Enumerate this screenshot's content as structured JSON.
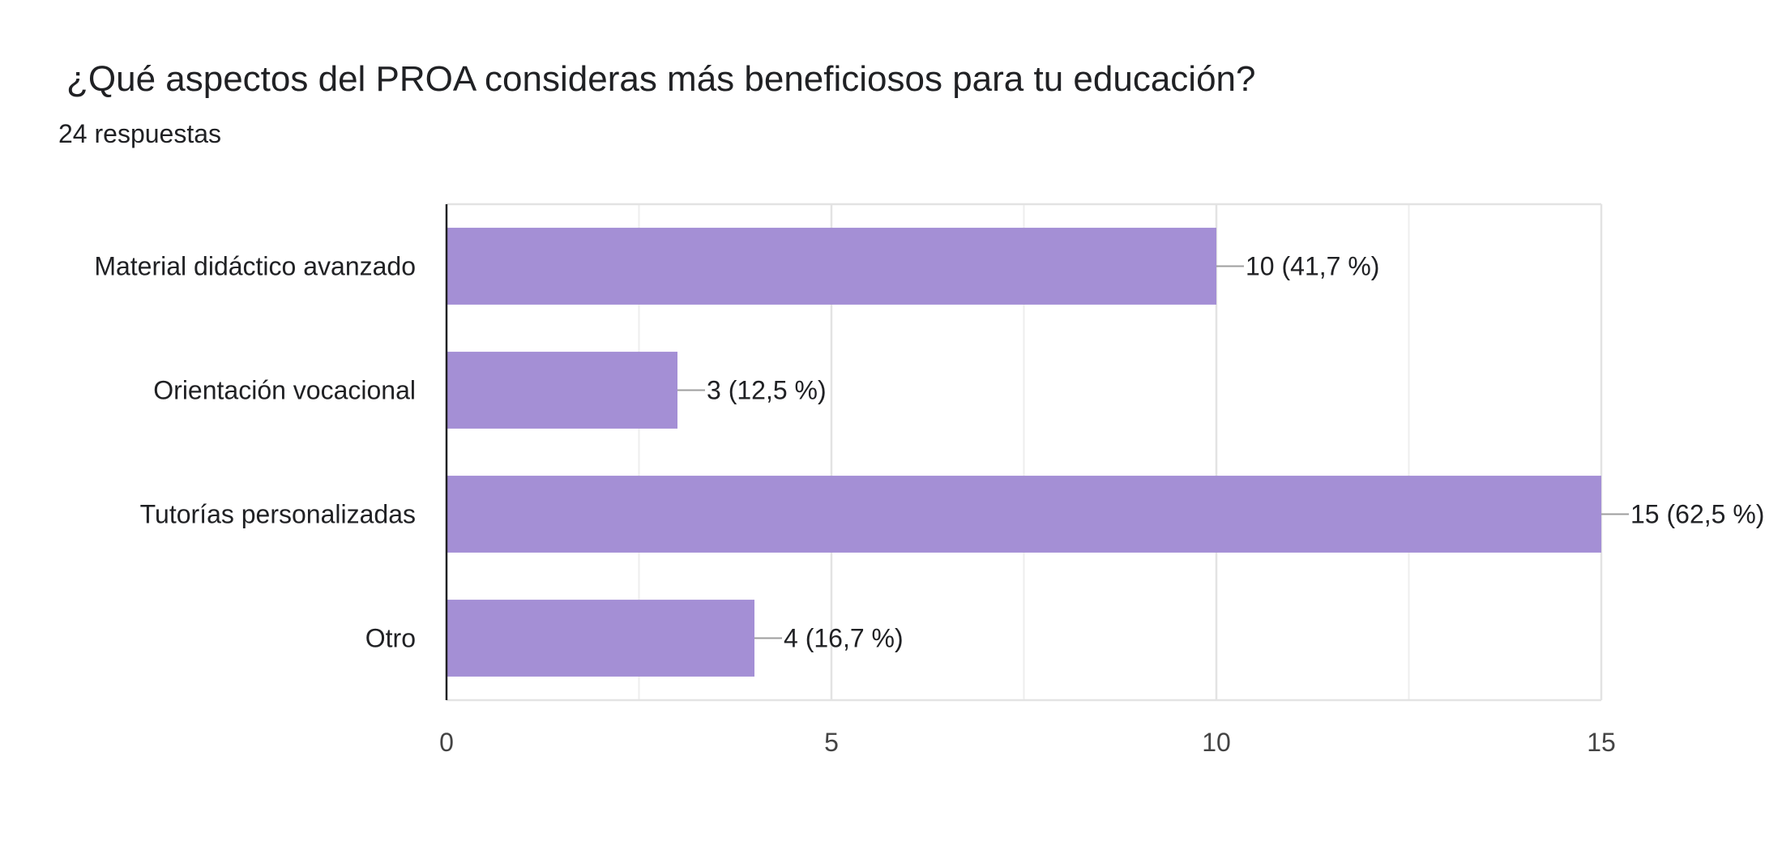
{
  "header": {
    "title": "¿Qué aspectos del PROA consideras más beneficiosos para tu educación?",
    "responses": "24 respuestas"
  },
  "chart_data": {
    "type": "bar",
    "orientation": "horizontal",
    "title": "¿Qué aspectos del PROA consideras más beneficiosos para tu educación?",
    "subtitle": "24 respuestas",
    "categories": [
      "Material didáctico avanzado",
      "Orientación vocacional",
      "Tutorías personalizadas",
      "Otro"
    ],
    "values": [
      10,
      3,
      15,
      4
    ],
    "data_labels": [
      "10 (41,7 %)",
      "3 (12,5 %)",
      "15 (62,5 %)",
      "4 (16,7 %)"
    ],
    "xlim": [
      0,
      15
    ],
    "xticks": [
      0,
      5,
      10,
      15
    ],
    "grid": true,
    "bar_color": "#a48fd5"
  }
}
